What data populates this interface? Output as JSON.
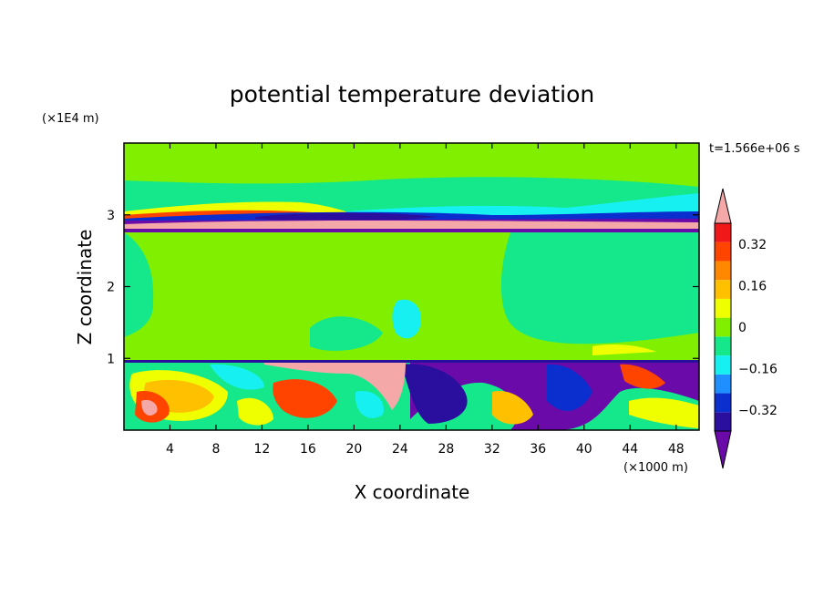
{
  "chart_data": {
    "type": "heatmap",
    "title": "potential temperature deviation",
    "xlabel": "X coordinate",
    "ylabel": "Z coordinate",
    "x_unit": "(×1000 m)",
    "y_unit": "(×1E4 m)",
    "time_label": "t=1.566e+06 s",
    "xlim": [
      0,
      50
    ],
    "ylim": [
      0,
      4
    ],
    "x_ticks": [
      4,
      8,
      12,
      16,
      20,
      24,
      28,
      32,
      36,
      40,
      44,
      48
    ],
    "y_ticks": [
      1,
      2,
      3
    ],
    "colorbar": {
      "levels": [
        -0.48,
        -0.4,
        -0.32,
        -0.24,
        -0.16,
        -0.08,
        0,
        0.08,
        0.16,
        0.24,
        0.32,
        0.4,
        0.48
      ],
      "colors": [
        "#6a0aa8",
        "#2a0f9e",
        "#0b2ecf",
        "#1f8fff",
        "#16f0f0",
        "#14e88a",
        "#80f000",
        "#f0ff00",
        "#ffc000",
        "#ff8800",
        "#ff4400",
        "#f01818",
        "#f4a8a8"
      ],
      "tick_values": [
        0.32,
        0.16,
        0,
        -0.16,
        -0.32
      ],
      "tick_labels": [
        "0.32",
        "0.16",
        "0",
        "−0.16",
        "−0.32"
      ]
    }
  }
}
